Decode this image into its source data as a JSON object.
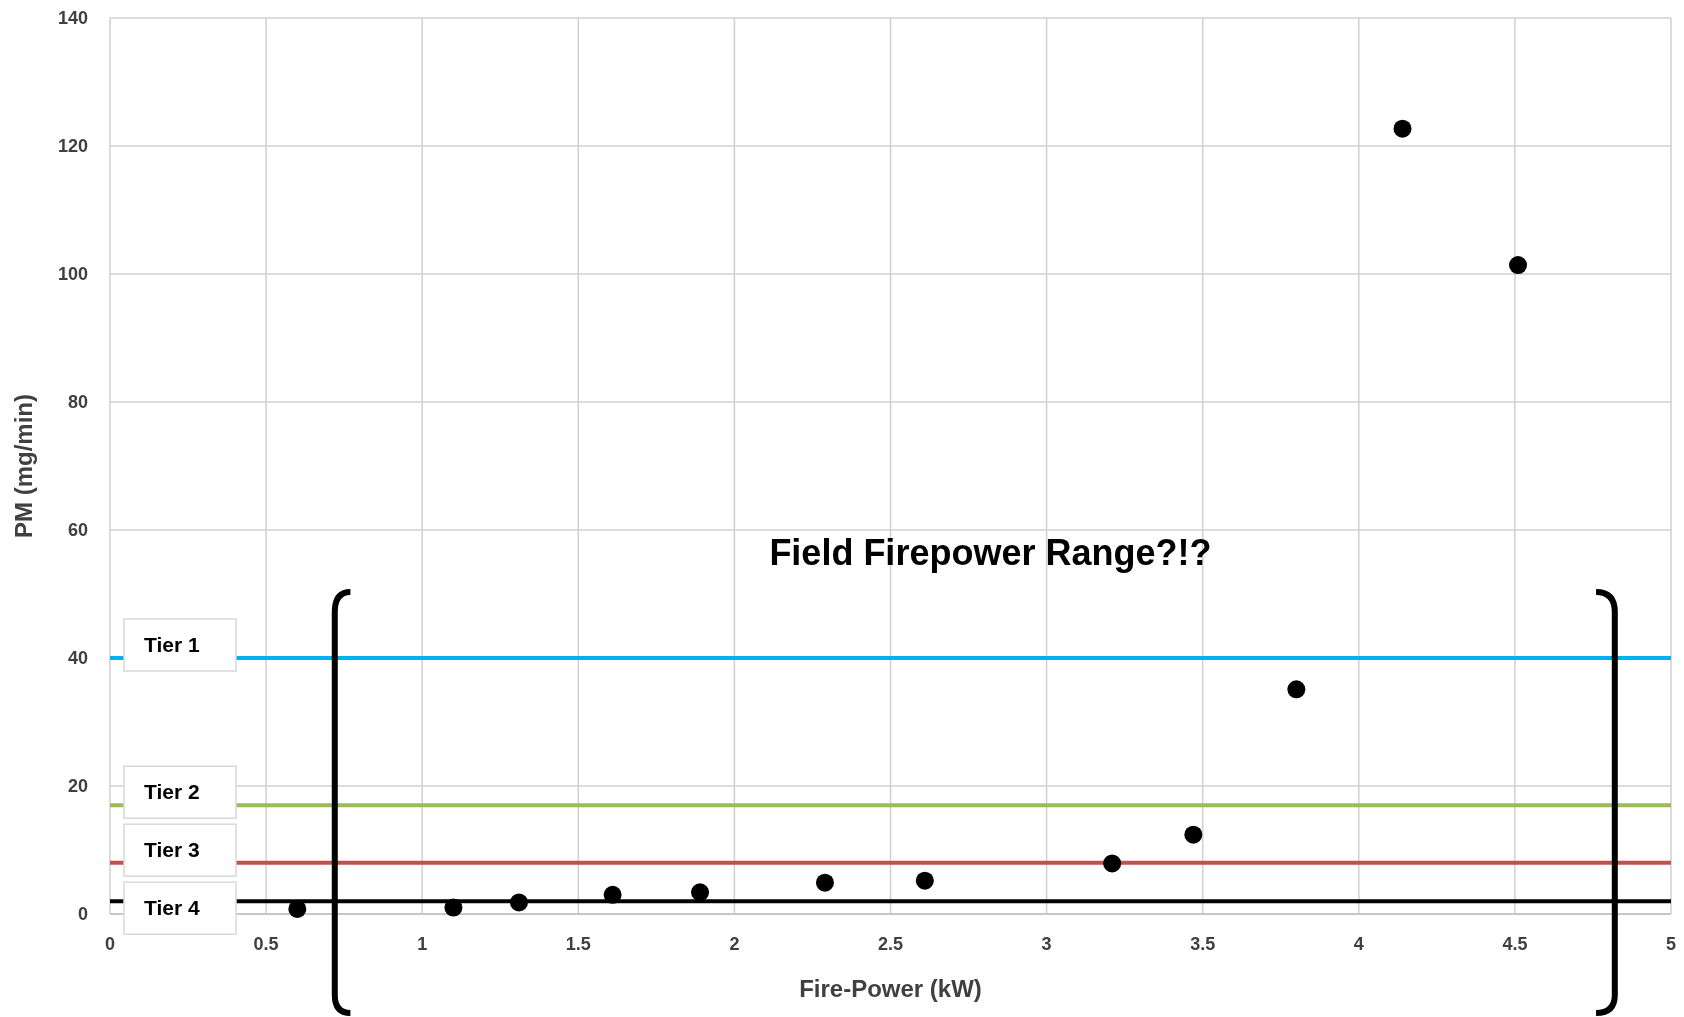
{
  "chart_data": {
    "type": "scatter",
    "xlabel": "Fire-Power (kW)",
    "ylabel": "PM (mg/min)",
    "annotations": [
      "Field Firepower Range?!?"
    ],
    "series": [
      {
        "color": "#000000",
        "x": [
          0.6,
          1.1,
          1.31,
          1.61,
          1.89,
          2.29,
          2.61,
          3.21,
          3.47,
          3.8,
          4.14,
          4.51
        ],
        "values": [
          0.8,
          1,
          1.8,
          3,
          3.4,
          4.9,
          5.2,
          7.9,
          12.4,
          35.1,
          122.7,
          101.4
        ]
      }
    ],
    "xlim": [
      0,
      5
    ],
    "xticks": [
      0,
      0.5,
      1,
      1.5,
      2,
      2.5,
      3,
      3.5,
      4,
      4.5,
      5
    ],
    "ylim": [
      0,
      140
    ],
    "yticks": [
      0,
      20,
      40,
      60,
      80,
      100,
      120,
      140
    ],
    "ref_lines": [
      {
        "axis": "y",
        "value": 40,
        "label": "Tier 1",
        "color": "#00b0f0"
      },
      {
        "axis": "y",
        "value": 17,
        "label": "Tier 2",
        "color": "#9bbb59"
      },
      {
        "axis": "y",
        "value": 8,
        "label": "Tier 3",
        "color": "#c0504d"
      },
      {
        "axis": "y",
        "value": 2,
        "label": "Tier 4",
        "color": "#000000"
      }
    ],
    "grid": true,
    "marker": "circle"
  }
}
